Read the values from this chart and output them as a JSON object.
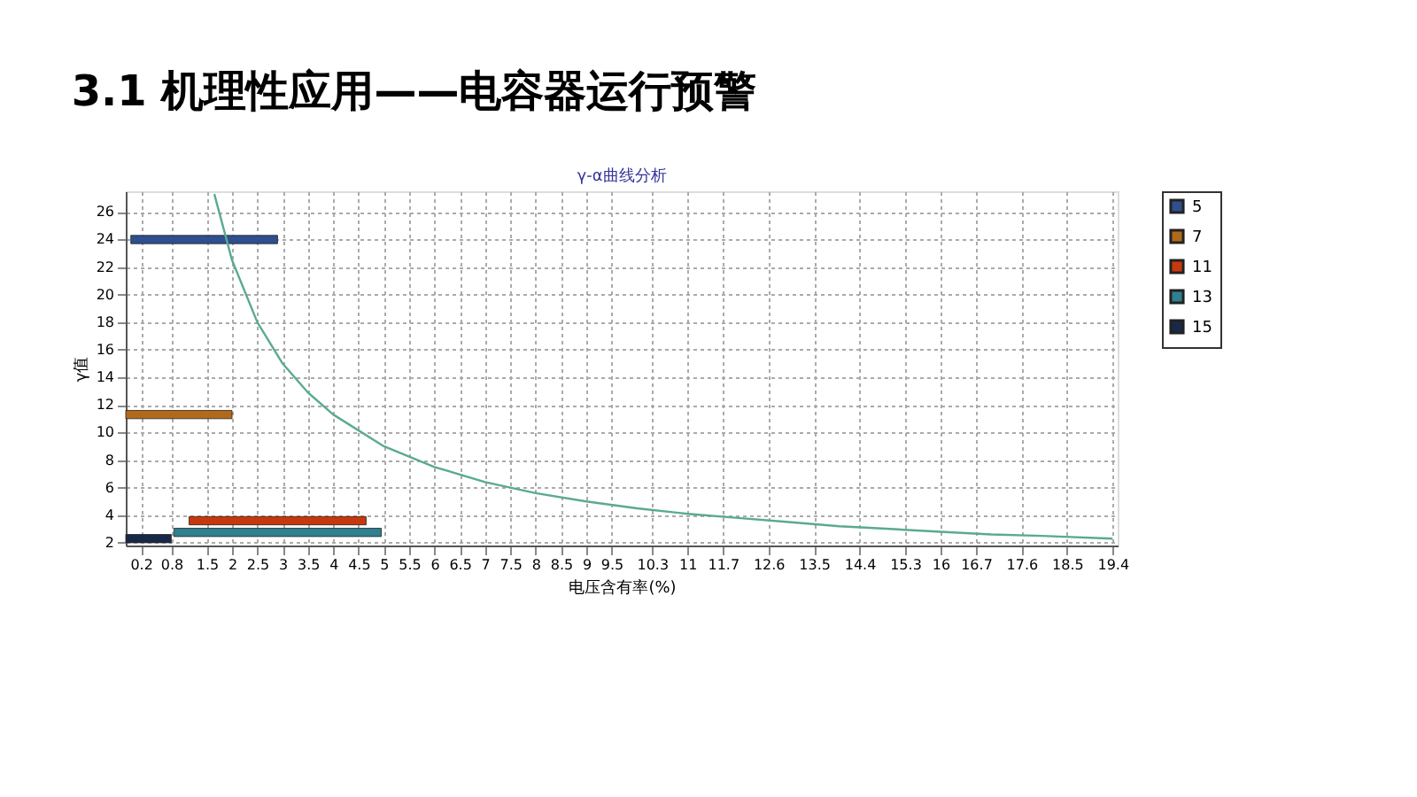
{
  "chart_data": {
    "type": "bar",
    "orientation": "horizontal",
    "title": "3.1 机理性应用——电容器运行预警",
    "subtitle": "γ-α曲线分析",
    "xlabel": "电压含有率(%)",
    "ylabel": "γ值",
    "xlim": [
      -0.1,
      19.5
    ],
    "xticks": [
      0.2,
      0.8,
      1.5,
      2,
      2.5,
      3,
      3.5,
      4,
      4.5,
      5,
      5.5,
      6,
      6.5,
      7,
      7.5,
      8,
      8.5,
      9,
      9.5,
      10.3,
      11,
      11.7,
      12.6,
      13.5,
      14.4,
      15.3,
      16,
      16.7,
      17.6,
      18.5,
      19.4
    ],
    "ylim": [
      1.8,
      27.5
    ],
    "yticks": [
      2,
      4,
      6,
      8,
      10,
      12,
      14,
      16,
      18,
      20,
      22,
      24,
      26
    ],
    "grid": true,
    "legend": "top right",
    "series": [
      {
        "name": "5",
        "color": "#2f4f8f",
        "x": [
          24
        ],
        "base": [
          0
        ],
        "values": [
          2.9
        ]
      },
      {
        "name": "7",
        "color": "#b06a1a",
        "x": [
          11.3
        ],
        "base": [
          -0.1
        ],
        "values": [
          2.1
        ]
      },
      {
        "name": "11",
        "color": "#c8380c",
        "x": [
          3.6
        ],
        "base": [
          1.15
        ],
        "values": [
          3.5
        ]
      },
      {
        "name": "13",
        "color": "#2f8090",
        "x": [
          2.75
        ],
        "base": [
          0.85
        ],
        "values": [
          4.1
        ]
      },
      {
        "name": "15",
        "color": "#1a2848",
        "x": [
          2.3
        ],
        "base": [
          -0.1
        ],
        "values": [
          0.9
        ]
      },
      {
        "type": "line",
        "color": "#5aaa90",
        "x": [
          27.3,
          22.5,
          18,
          15,
          12.9,
          11.3,
          9,
          7.5,
          6.4,
          5.6,
          5,
          4.5,
          4.1,
          3.8,
          3.5,
          3.2,
          3,
          2.8,
          2.6,
          2.5,
          2.3
        ],
        "values": [
          1.65,
          2,
          2.5,
          3,
          3.5,
          4,
          5,
          6,
          7,
          8,
          9,
          10,
          11,
          12,
          13,
          14,
          15,
          16,
          17,
          18,
          19.4
        ]
      }
    ]
  }
}
